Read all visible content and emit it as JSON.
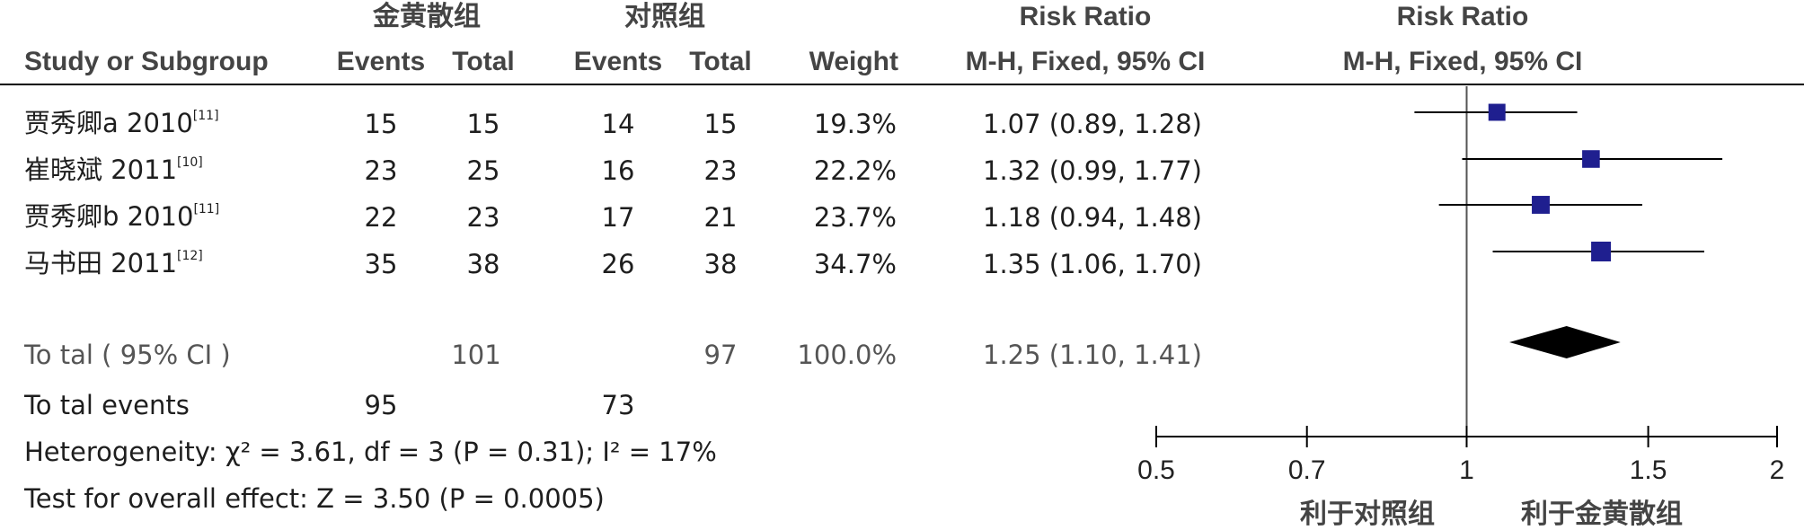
{
  "header": {
    "group_exp": "金黄散组",
    "group_ctrl": "对照组",
    "rr_col": "Risk Ratio",
    "rr_plot": "Risk Ratio",
    "study_col": "Study or Subgroup",
    "events": "Events",
    "total": "Total",
    "weight": "Weight",
    "method_col": "M-H, Fixed, 95% CI",
    "method_plot": "M-H, Fixed, 95% CI"
  },
  "studies": [
    {
      "name": "贾秀卿a 2010",
      "ref": "[11]",
      "exp_events": "15",
      "exp_total": "15",
      "ctrl_events": "14",
      "ctrl_total": "15",
      "weight": "19.3%",
      "ci_text": "1.07 (0.89, 1.28)"
    },
    {
      "name": "崔晓斌 2011",
      "ref": "[10]",
      "exp_events": "23",
      "exp_total": "25",
      "ctrl_events": "16",
      "ctrl_total": "23",
      "weight": "22.2%",
      "ci_text": "1.32 (0.99, 1.77)"
    },
    {
      "name": "贾秀卿b 2010",
      "ref": "[11]",
      "exp_events": "22",
      "exp_total": "23",
      "ctrl_events": "17",
      "ctrl_total": "21",
      "weight": "23.7%",
      "ci_text": "1.18 (0.94, 1.48)"
    },
    {
      "name": "马书田 2011",
      "ref": "[12]",
      "exp_events": "35",
      "exp_total": "38",
      "ctrl_events": "26",
      "ctrl_total": "38",
      "weight": "34.7%",
      "ci_text": "1.35 (1.06, 1.70)"
    }
  ],
  "total": {
    "label": "To tal ( 95% CI )",
    "exp_total": "101",
    "ctrl_total": "97",
    "weight": "100.0%",
    "ci_text": "1.25 (1.10, 1.41)"
  },
  "total_events": {
    "label": "To tal events",
    "exp": "95",
    "ctrl": "73"
  },
  "heterogeneity": "Heterogeneity:  χ² = 3.61, df = 3 (P = 0.31); I² = 17%",
  "overall_effect": "Test for overall effect: Z = 3.50 (P = 0.0005)",
  "axis": {
    "favours_left": "利于对照组",
    "favours_right": "利于金黄散组"
  },
  "colors": {
    "marker": "#1f1f8f",
    "diamond": "#000000",
    "line": "#000000"
  },
  "chart_data": {
    "type": "forest",
    "scale": "log",
    "xlim": [
      0.5,
      2
    ],
    "ticks": [
      "0.5",
      "0.7",
      "1",
      "1.5",
      "2"
    ],
    "tick_values": [
      0.5,
      0.7,
      1,
      1.5,
      2
    ],
    "null_value": 1,
    "series": [
      {
        "study": "贾秀卿a 2010",
        "rr": 1.07,
        "lower": 0.89,
        "upper": 1.28,
        "weight": 19.3
      },
      {
        "study": "崔晓斌 2011",
        "rr": 1.32,
        "lower": 0.99,
        "upper": 1.77,
        "weight": 22.2
      },
      {
        "study": "贾秀卿b 2010",
        "rr": 1.18,
        "lower": 0.94,
        "upper": 1.48,
        "weight": 23.7
      },
      {
        "study": "马书田 2011",
        "rr": 1.35,
        "lower": 1.06,
        "upper": 1.7,
        "weight": 34.7
      }
    ],
    "pooled": {
      "rr": 1.25,
      "lower": 1.1,
      "upper": 1.41
    }
  }
}
